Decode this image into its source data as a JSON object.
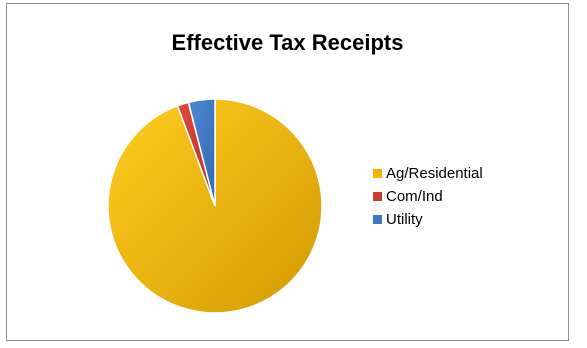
{
  "chart_data": {
    "type": "pie",
    "title": "Effective Tax Receipts",
    "categories": [
      "Ag/Residential",
      "Com/Ind",
      "Utility"
    ],
    "values": [
      94.3,
      1.7,
      4.0
    ],
    "colors": [
      "#f2b600",
      "#cd3a2e",
      "#3f79c4"
    ],
    "legend_position": "right",
    "start_angle": "top, clockwise"
  }
}
